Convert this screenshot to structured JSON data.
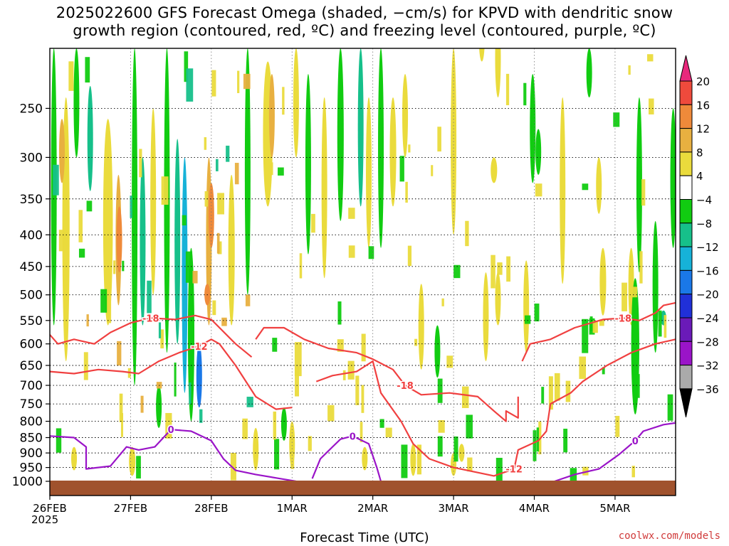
{
  "title": {
    "line1": "2025022600 GFS Forecast Omega (shaded, −cm/s) for KPVD with dendritic snow",
    "line2": "growth region (contoured, red, ºC) and freezing level (contoured, purple, ºC)"
  },
  "credit": "coolwx.com/models",
  "chart_data": {
    "type": "heatmap",
    "xlabel": "Forecast Time (UTC)",
    "year_label": "2025",
    "x_ticks": [
      "26FEB",
      "27FEB",
      "28FEB",
      "1MAR",
      "2MAR",
      "3MAR",
      "4MAR",
      "5MAR"
    ],
    "x_range_days": [
      0,
      7.75
    ],
    "y_ticks": [
      250,
      300,
      350,
      400,
      450,
      500,
      550,
      600,
      650,
      700,
      750,
      800,
      850,
      900,
      950,
      1000
    ],
    "y_range_hpa": [
      200,
      1000
    ],
    "y_scale": "log-pressure",
    "colorbar": {
      "labels": [
        "20",
        "16",
        "12",
        "8",
        "4",
        "−4",
        "−8",
        "−12",
        "−16",
        "−20",
        "−24",
        "−28",
        "−32",
        "−36"
      ],
      "colors": [
        "#e8287c",
        "#ef4a3c",
        "#ef8a3a",
        "#e8b040",
        "#eadb3c",
        "#ffffff",
        "#11cc11",
        "#16c08a",
        "#16b2d8",
        "#1a78e8",
        "#2030d8",
        "#6a1ab8",
        "#9a14c8",
        "#aaaaaa",
        "#000000"
      ]
    },
    "contours": [
      {
        "series": "dgz",
        "label": "-18",
        "color": "#f04040",
        "points": [
          [
            0,
            580
          ],
          [
            0.1,
            600
          ],
          [
            0.3,
            590
          ],
          [
            0.55,
            600
          ],
          [
            0.75,
            575
          ],
          [
            1.0,
            555
          ],
          [
            1.25,
            545
          ],
          [
            1.55,
            548
          ],
          [
            1.8,
            540
          ],
          [
            2.0,
            548
          ],
          [
            2.3,
            600
          ],
          [
            2.5,
            630
          ]
        ]
      },
      {
        "series": "dgz",
        "label": "-12",
        "color": "#f04040",
        "points": [
          [
            0,
            665
          ],
          [
            0.3,
            670
          ],
          [
            0.6,
            660
          ],
          [
            0.9,
            665
          ],
          [
            1.1,
            670
          ],
          [
            1.35,
            640
          ],
          [
            1.6,
            620
          ],
          [
            1.85,
            605
          ],
          [
            2.0,
            590
          ],
          [
            2.1,
            600
          ],
          [
            2.3,
            650
          ],
          [
            2.55,
            730
          ],
          [
            2.8,
            765
          ],
          [
            3.0,
            760
          ]
        ]
      },
      {
        "series": "dgz",
        "label": "-18",
        "color": "#f04040",
        "points": [
          [
            2.55,
            590
          ],
          [
            2.65,
            565
          ],
          [
            2.9,
            565
          ],
          [
            3.15,
            590
          ],
          [
            3.45,
            610
          ],
          [
            3.8,
            620
          ],
          [
            4.0,
            635
          ],
          [
            4.25,
            660
          ],
          [
            4.4,
            700
          ],
          [
            4.6,
            725
          ],
          [
            4.95,
            720
          ],
          [
            5.3,
            730
          ],
          [
            5.5,
            770
          ],
          [
            5.65,
            800
          ],
          [
            5.65,
            770
          ],
          [
            5.8,
            790
          ],
          [
            5.8,
            730
          ]
        ]
      },
      {
        "series": "dgz",
        "label": "-12",
        "color": "#f04040",
        "points": [
          [
            3.3,
            690
          ],
          [
            3.5,
            675
          ],
          [
            3.8,
            665
          ],
          [
            4.0,
            640
          ],
          [
            4.1,
            720
          ],
          [
            4.35,
            800
          ],
          [
            4.5,
            870
          ],
          [
            4.7,
            920
          ],
          [
            5.0,
            950
          ],
          [
            5.5,
            980
          ],
          [
            5.75,
            955
          ],
          [
            5.8,
            890
          ],
          [
            6.05,
            860
          ],
          [
            6.15,
            830
          ],
          [
            6.2,
            750
          ],
          [
            6.45,
            720
          ],
          [
            6.6,
            690
          ],
          [
            6.9,
            650
          ],
          [
            7.2,
            620
          ],
          [
            7.5,
            600
          ],
          [
            7.75,
            590
          ]
        ]
      },
      {
        "series": "dgz",
        "label": "-18",
        "color": "#f04040",
        "points": [
          [
            5.85,
            640
          ],
          [
            5.95,
            600
          ],
          [
            6.2,
            590
          ],
          [
            6.5,
            565
          ],
          [
            6.85,
            548
          ],
          [
            7.1,
            545
          ],
          [
            7.3,
            550
          ],
          [
            7.5,
            535
          ],
          [
            7.6,
            520
          ],
          [
            7.75,
            515
          ]
        ]
      },
      {
        "series": "freezing",
        "label": "0",
        "color": "#9a14c8",
        "points": [
          [
            0,
            845
          ],
          [
            0.3,
            850
          ],
          [
            0.45,
            880
          ],
          [
            0.45,
            955
          ],
          [
            0.75,
            945
          ],
          [
            0.95,
            880
          ],
          [
            1.1,
            890
          ],
          [
            1.3,
            880
          ],
          [
            1.5,
            825
          ],
          [
            1.75,
            830
          ],
          [
            2.0,
            860
          ],
          [
            2.15,
            920
          ],
          [
            2.3,
            960
          ],
          [
            2.55,
            975
          ],
          [
            2.85,
            990
          ],
          [
            3.05,
            1000
          ]
        ]
      },
      {
        "series": "freezing",
        "label": "0",
        "color": "#9a14c8",
        "points": [
          [
            3.25,
            990
          ],
          [
            3.35,
            920
          ],
          [
            3.5,
            880
          ],
          [
            3.6,
            855
          ],
          [
            3.75,
            845
          ],
          [
            3.95,
            870
          ],
          [
            4.05,
            950
          ],
          [
            4.1,
            1000
          ]
        ]
      },
      {
        "series": "freezing",
        "label": "0",
        "color": "#9a14c8",
        "points": [
          [
            6.25,
            1000
          ],
          [
            6.5,
            975
          ],
          [
            6.8,
            955
          ],
          [
            7.05,
            905
          ],
          [
            7.25,
            860
          ],
          [
            7.35,
            830
          ],
          [
            7.6,
            810
          ],
          [
            7.75,
            805
          ]
        ]
      }
    ]
  }
}
